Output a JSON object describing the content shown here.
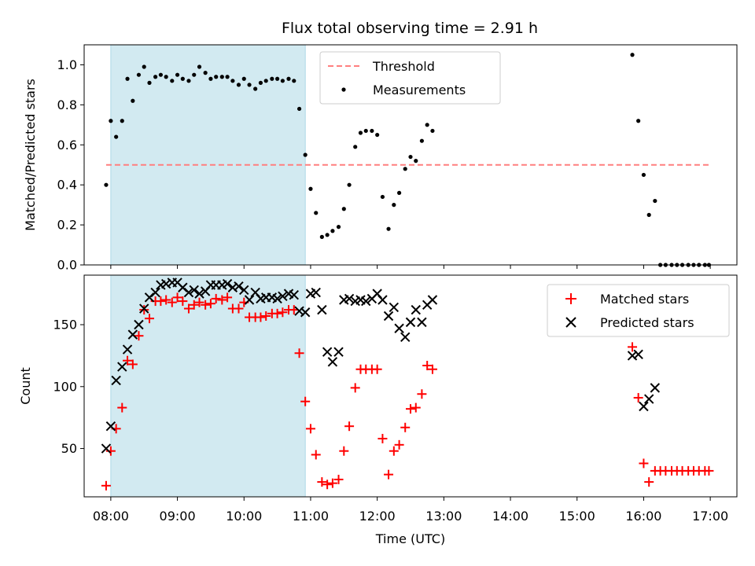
{
  "title": "Flux total observing time = 2.91 h",
  "colors": {
    "shade": "#add8e6",
    "threshold": "#ff7f7f",
    "matched": "#ff0000",
    "predicted": "#000000",
    "measurement": "#000000"
  },
  "chart_data": [
    {
      "type": "scatter",
      "panel": "top",
      "ylabel": "Matched/Predicted stars",
      "ylim": [
        0,
        1.1
      ],
      "yticks": [
        0.0,
        0.2,
        0.4,
        0.6,
        0.8,
        1.0
      ],
      "ytick_labels": [
        "0.0",
        "0.2",
        "0.4",
        "0.6",
        "0.8",
        "1.0"
      ],
      "xlim_hours": [
        7.6,
        17.4
      ],
      "xticks_hours": [
        8,
        9,
        10,
        11,
        12,
        13,
        14,
        15,
        16,
        17
      ],
      "shaded_interval_hours": [
        8.0,
        10.92
      ],
      "threshold": {
        "y": 0.5,
        "x_range_hours": [
          7.93,
          16.98
        ]
      },
      "legend": {
        "position": "top-center",
        "entries": [
          "Threshold",
          "Measurements"
        ]
      },
      "series": [
        {
          "name": "Measurements",
          "x": [
            7.93,
            8.0,
            8.08,
            8.17,
            8.25,
            8.33,
            8.42,
            8.5,
            8.58,
            8.67,
            8.75,
            8.83,
            8.92,
            9.0,
            9.08,
            9.17,
            9.25,
            9.33,
            9.42,
            9.5,
            9.58,
            9.67,
            9.75,
            9.83,
            9.92,
            10.0,
            10.08,
            10.17,
            10.25,
            10.33,
            10.42,
            10.5,
            10.58,
            10.67,
            10.75,
            10.83,
            10.92,
            11.0,
            11.08,
            11.17,
            11.25,
            11.33,
            11.42,
            11.5,
            11.58,
            11.67,
            11.75,
            11.83,
            11.92,
            12.0,
            12.08,
            12.17,
            12.25,
            12.33,
            12.42,
            12.5,
            12.58,
            12.67,
            12.75,
            12.83,
            15.83,
            15.92,
            16.0,
            16.08,
            16.17,
            16.25,
            16.33,
            16.42,
            16.5,
            16.58,
            16.67,
            16.75,
            16.83,
            16.92,
            16.98
          ],
          "y": [
            0.4,
            0.72,
            0.64,
            0.72,
            0.93,
            0.82,
            0.95,
            0.99,
            0.91,
            0.94,
            0.95,
            0.94,
            0.92,
            0.95,
            0.93,
            0.92,
            0.95,
            0.99,
            0.96,
            0.93,
            0.94,
            0.94,
            0.94,
            0.92,
            0.9,
            0.93,
            0.9,
            0.88,
            0.91,
            0.92,
            0.93,
            0.93,
            0.92,
            0.93,
            0.92,
            0.78,
            0.55,
            0.38,
            0.26,
            0.14,
            0.15,
            0.17,
            0.19,
            0.28,
            0.4,
            0.59,
            0.66,
            0.67,
            0.67,
            0.65,
            0.34,
            0.18,
            0.3,
            0.36,
            0.48,
            0.54,
            0.52,
            0.62,
            0.7,
            0.67,
            1.05,
            0.72,
            0.45,
            0.25,
            0.32,
            0.0,
            0.0,
            0.0,
            0.0,
            0.0,
            0.0,
            0.0,
            0.0,
            0.0,
            0.0
          ]
        }
      ]
    },
    {
      "type": "scatter",
      "panel": "bottom",
      "xlabel": "Time (UTC)",
      "ylabel": "Count",
      "ylim": [
        11,
        190
      ],
      "yticks": [
        50,
        100,
        150
      ],
      "ytick_labels": [
        "50",
        "100",
        "150"
      ],
      "xlim_hours": [
        7.6,
        17.4
      ],
      "xticks_hours": [
        8,
        9,
        10,
        11,
        12,
        13,
        14,
        15,
        16,
        17
      ],
      "xtick_labels": [
        "08:00",
        "09:00",
        "10:00",
        "11:00",
        "12:00",
        "13:00",
        "14:00",
        "15:00",
        "16:00",
        "17:00"
      ],
      "shaded_interval_hours": [
        8.0,
        10.92
      ],
      "legend": {
        "position": "top-right",
        "entries": [
          "Matched stars",
          "Predicted stars"
        ]
      },
      "series": [
        {
          "name": "Matched stars",
          "marker": "plus",
          "x": [
            7.93,
            8.0,
            8.08,
            8.17,
            8.25,
            8.33,
            8.42,
            8.5,
            8.58,
            8.67,
            8.75,
            8.83,
            8.92,
            9.0,
            9.08,
            9.17,
            9.25,
            9.33,
            9.42,
            9.5,
            9.58,
            9.67,
            9.75,
            9.83,
            9.92,
            10.0,
            10.08,
            10.17,
            10.25,
            10.33,
            10.42,
            10.5,
            10.58,
            10.67,
            10.75,
            10.83,
            10.92,
            11.0,
            11.08,
            11.17,
            11.25,
            11.33,
            11.42,
            11.5,
            11.58,
            11.67,
            11.75,
            11.83,
            11.92,
            12.0,
            12.08,
            12.17,
            12.25,
            12.33,
            12.42,
            12.5,
            12.58,
            12.67,
            12.75,
            12.83,
            15.83,
            15.92,
            16.0,
            16.08,
            16.17,
            16.25,
            16.33,
            16.42,
            16.5,
            16.58,
            16.67,
            16.75,
            16.83,
            16.92,
            16.98
          ],
          "y": [
            20,
            48,
            66,
            83,
            121,
            118,
            141,
            162,
            155,
            169,
            169,
            170,
            168,
            172,
            169,
            163,
            166,
            168,
            166,
            167,
            171,
            170,
            172,
            163,
            163,
            168,
            156,
            156,
            156,
            157,
            159,
            159,
            160,
            162,
            162,
            127,
            88,
            66,
            45,
            23,
            21,
            22,
            25,
            48,
            68,
            99,
            114,
            114,
            114,
            114,
            58,
            29,
            48,
            53,
            67,
            82,
            83,
            94,
            117,
            114,
            132,
            91,
            38,
            23,
            32,
            32,
            32,
            32,
            32,
            32,
            32,
            32,
            32,
            32,
            32
          ]
        },
        {
          "name": "Predicted stars",
          "marker": "x",
          "x": [
            7.93,
            8.0,
            8.08,
            8.17,
            8.25,
            8.33,
            8.42,
            8.5,
            8.58,
            8.67,
            8.75,
            8.83,
            8.92,
            9.0,
            9.08,
            9.17,
            9.25,
            9.33,
            9.42,
            9.5,
            9.58,
            9.67,
            9.75,
            9.83,
            9.92,
            10.0,
            10.08,
            10.17,
            10.25,
            10.33,
            10.42,
            10.5,
            10.58,
            10.67,
            10.75,
            10.83,
            10.92,
            11.0,
            11.08,
            11.17,
            11.25,
            11.33,
            11.42,
            11.5,
            11.58,
            11.67,
            11.75,
            11.83,
            11.92,
            12.0,
            12.08,
            12.17,
            12.25,
            12.33,
            12.42,
            12.5,
            12.58,
            12.67,
            12.75,
            12.83,
            15.83,
            15.92,
            16.0,
            16.08,
            16.17
          ],
          "y": [
            50,
            68,
            105,
            116,
            130,
            142,
            150,
            163,
            172,
            176,
            182,
            183,
            184,
            184,
            180,
            176,
            178,
            175,
            177,
            182,
            182,
            182,
            183,
            180,
            181,
            178,
            170,
            176,
            171,
            172,
            172,
            171,
            173,
            175,
            174,
            161,
            160,
            175,
            176,
            162,
            128,
            120,
            128,
            170,
            171,
            169,
            170,
            169,
            171,
            175,
            170,
            157,
            164,
            147,
            140,
            152,
            162,
            152,
            166,
            170,
            125,
            126,
            84,
            90,
            99
          ]
        }
      ]
    }
  ]
}
